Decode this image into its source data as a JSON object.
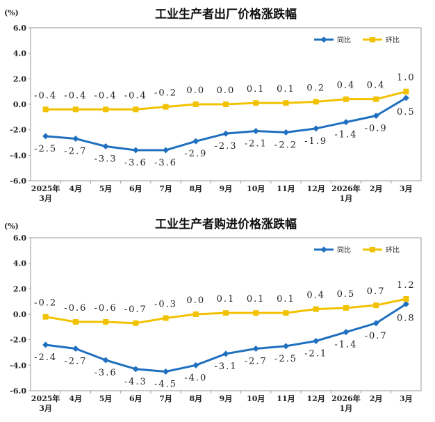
{
  "chart_data": [
    {
      "type": "line",
      "title": "工业生产者出厂价格涨跌幅",
      "unit_label": "(%)",
      "categories": [
        [
          "2025年",
          "3月"
        ],
        [
          "4月"
        ],
        [
          "5月"
        ],
        [
          "6月"
        ],
        [
          "7月"
        ],
        [
          "8月"
        ],
        [
          "9月"
        ],
        [
          "10月"
        ],
        [
          "11月"
        ],
        [
          "12月"
        ],
        [
          "2026年",
          "1月"
        ],
        [
          "2月"
        ],
        [
          "3月"
        ]
      ],
      "ylim": [
        -6,
        6
      ],
      "yticks": [
        "-6.0",
        "-4.0",
        "-2.0",
        "0.0",
        "2.0",
        "4.0",
        "6.0"
      ],
      "grid": false,
      "legend_position": "top-right",
      "series": [
        {
          "name": "同比",
          "color": "#1f6fbf",
          "marker": "diamond",
          "values": [
            -2.5,
            -2.7,
            -3.3,
            -3.6,
            -3.6,
            -2.9,
            -2.3,
            -2.1,
            -2.2,
            -1.9,
            -1.4,
            -0.9,
            0.5
          ],
          "labels": [
            "-2.5",
            "-2.7",
            "-3.3",
            "-3.6",
            "-3.6",
            "-2.9",
            "-2.3",
            "-2.1",
            "-2.2",
            "-1.9",
            "-1.4",
            "-0.9",
            "0.5"
          ]
        },
        {
          "name": "环比",
          "color": "#f2c200",
          "marker": "square",
          "values": [
            -0.4,
            -0.4,
            -0.4,
            -0.4,
            -0.2,
            0.0,
            0.0,
            0.1,
            0.1,
            0.2,
            0.4,
            0.4,
            1.0
          ],
          "labels": [
            "-0.4",
            "-0.4",
            "-0.4",
            "-0.4",
            "-0.2",
            "0.0",
            "0.0",
            "0.1",
            "0.1",
            "0.2",
            "0.4",
            "0.4",
            "1.0"
          ]
        }
      ]
    },
    {
      "type": "line",
      "title": "工业生产者购进价格涨跌幅",
      "unit_label": "(%)",
      "categories": [
        [
          "2025年",
          "3月"
        ],
        [
          "4月"
        ],
        [
          "5月"
        ],
        [
          "6月"
        ],
        [
          "7月"
        ],
        [
          "8月"
        ],
        [
          "9月"
        ],
        [
          "10月"
        ],
        [
          "11月"
        ],
        [
          "12月"
        ],
        [
          "2026年",
          "1月"
        ],
        [
          "2月"
        ],
        [
          "3月"
        ]
      ],
      "ylim": [
        -6,
        6
      ],
      "yticks": [
        "-6.0",
        "-4.0",
        "-2.0",
        "0.0",
        "2.0",
        "4.0",
        "6.0"
      ],
      "grid": false,
      "legend_position": "top-right",
      "series": [
        {
          "name": "同比",
          "color": "#1f6fbf",
          "marker": "diamond",
          "values": [
            -2.4,
            -2.7,
            -3.6,
            -4.3,
            -4.5,
            -4.0,
            -3.1,
            -2.7,
            -2.5,
            -2.1,
            -1.4,
            -0.7,
            0.8
          ],
          "labels": [
            "-2.4",
            "-2.7",
            "-3.6",
            "-4.3",
            "-4.5",
            "-4.0",
            "-3.1",
            "-2.7",
            "-2.5",
            "-2.1",
            "-1.4",
            "-0.7",
            "0.8"
          ]
        },
        {
          "name": "环比",
          "color": "#f2c200",
          "marker": "square",
          "values": [
            -0.2,
            -0.6,
            -0.6,
            -0.7,
            -0.3,
            0.0,
            0.1,
            0.1,
            0.1,
            0.4,
            0.5,
            0.7,
            1.2
          ],
          "labels": [
            "-0.2",
            "-0.6",
            "-0.6",
            "-0.7",
            "-0.3",
            "0.0",
            "0.1",
            "0.1",
            "0.1",
            "0.4",
            "0.5",
            "0.7",
            "1.2"
          ]
        }
      ]
    }
  ]
}
